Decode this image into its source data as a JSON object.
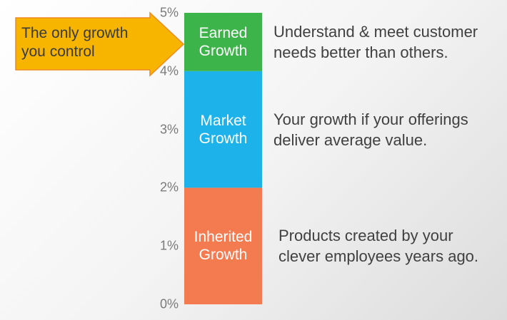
{
  "chart_data": {
    "type": "bar",
    "categories": [
      null
    ],
    "series": [
      {
        "name": "Inherited Growth",
        "color": "#f47a4f",
        "values": [
          2
        ],
        "description": "Products created by your clever employees years ago."
      },
      {
        "name": "Market Growth",
        "color": "#1db3ea",
        "values": [
          2
        ],
        "description": "Your growth if your offerings deliver average value."
      },
      {
        "name": "Earned Growth",
        "color": "#3cb44a",
        "values": [
          1
        ],
        "description": "Understand & meet customer needs better than others."
      }
    ],
    "annotation": "The only growth you control",
    "stacked": true,
    "ylim": [
      0,
      5
    ],
    "yticks": [
      {
        "value": 0,
        "label": "0%"
      },
      {
        "value": 1,
        "label": "1%"
      },
      {
        "value": 2,
        "label": "2%"
      },
      {
        "value": 3,
        "label": "3%"
      },
      {
        "value": 4,
        "label": "4%"
      },
      {
        "value": 5,
        "label": "5%"
      }
    ]
  }
}
